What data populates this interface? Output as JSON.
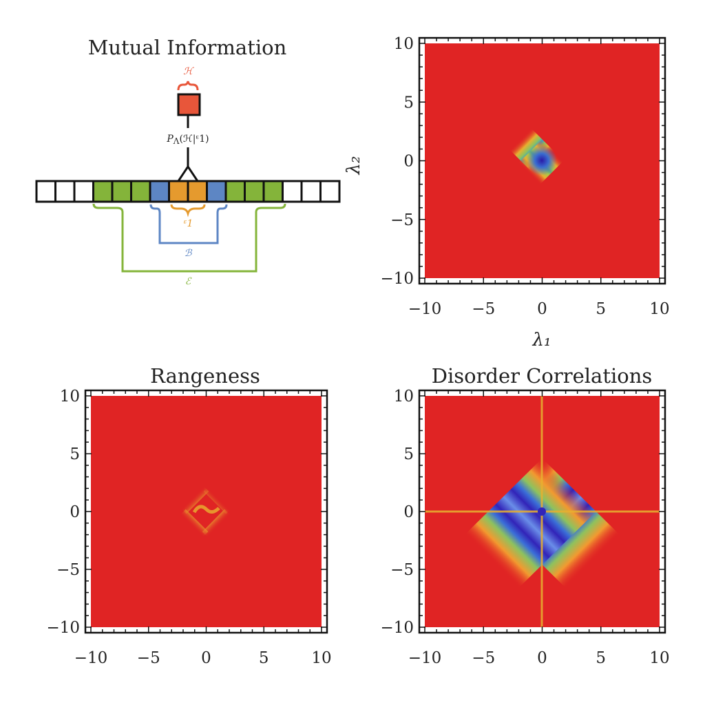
{
  "figure": {
    "diagram": {
      "title": "Mutual Information",
      "hidden_label": "ℋ",
      "prob_label": "P",
      "prob_sub": "Λ",
      "prob_args": "(ℋ|ᵋ1)",
      "visible_label": "ᵋ1",
      "buffer_label": "ℬ",
      "environment_label": "ℰ",
      "lattice": [
        "white",
        "white",
        "white",
        "green",
        "green",
        "green",
        "blue",
        "orange",
        "orange",
        "blue",
        "green",
        "green",
        "green",
        "white",
        "white",
        "white"
      ],
      "colors": {
        "hidden": "#E8563A",
        "green": "#84B43A",
        "blue": "#5D86C4",
        "orange": "#E59A2E"
      }
    }
  },
  "chart_data": [
    {
      "type": "heatmap",
      "title": "",
      "xlabel": "λ₁",
      "ylabel": "λ₂",
      "x": [
        -10,
        10
      ],
      "y": [
        -10,
        10
      ],
      "xticks": [
        -10,
        -5,
        0,
        5,
        10
      ],
      "yticks": [
        -10,
        -5,
        0,
        5,
        10
      ],
      "xtick_labels": [
        "−10",
        "−5",
        "0",
        "5",
        "10"
      ],
      "ytick_labels": [
        "−10",
        "−5",
        "0",
        "5",
        "10"
      ],
      "pattern": "two diagonal bands |λ₁|≈|λ₂| with low values, minimum near origin"
    },
    {
      "type": "heatmap",
      "title": "Rangeness",
      "xlabel": "",
      "ylabel": "",
      "x": [
        -10,
        10
      ],
      "y": [
        -10,
        10
      ],
      "xticks": [
        -10,
        -5,
        0,
        5,
        10
      ],
      "yticks": [
        -10,
        -5,
        0,
        5,
        10
      ],
      "xtick_labels": [
        "−10",
        "−5",
        "0",
        "5",
        "10"
      ],
      "ytick_labels": [
        "−10",
        "−5",
        "0",
        "5",
        "10"
      ],
      "pattern": "two diagonal bands split near origin"
    },
    {
      "type": "heatmap",
      "title": "Disorder Correlations",
      "xlabel": "",
      "ylabel": "",
      "x": [
        -10,
        10
      ],
      "y": [
        -10,
        10
      ],
      "xticks": [
        -10,
        -5,
        0,
        5,
        10
      ],
      "yticks": [
        -10,
        -5,
        0,
        5,
        10
      ],
      "xtick_labels": [
        "−10",
        "−5",
        "0",
        "5",
        "10"
      ],
      "ytick_labels": [
        "−10",
        "−5",
        "0",
        "5",
        "10"
      ],
      "pattern": "broad blue bands along both diagonals with thin lines along axes"
    }
  ]
}
